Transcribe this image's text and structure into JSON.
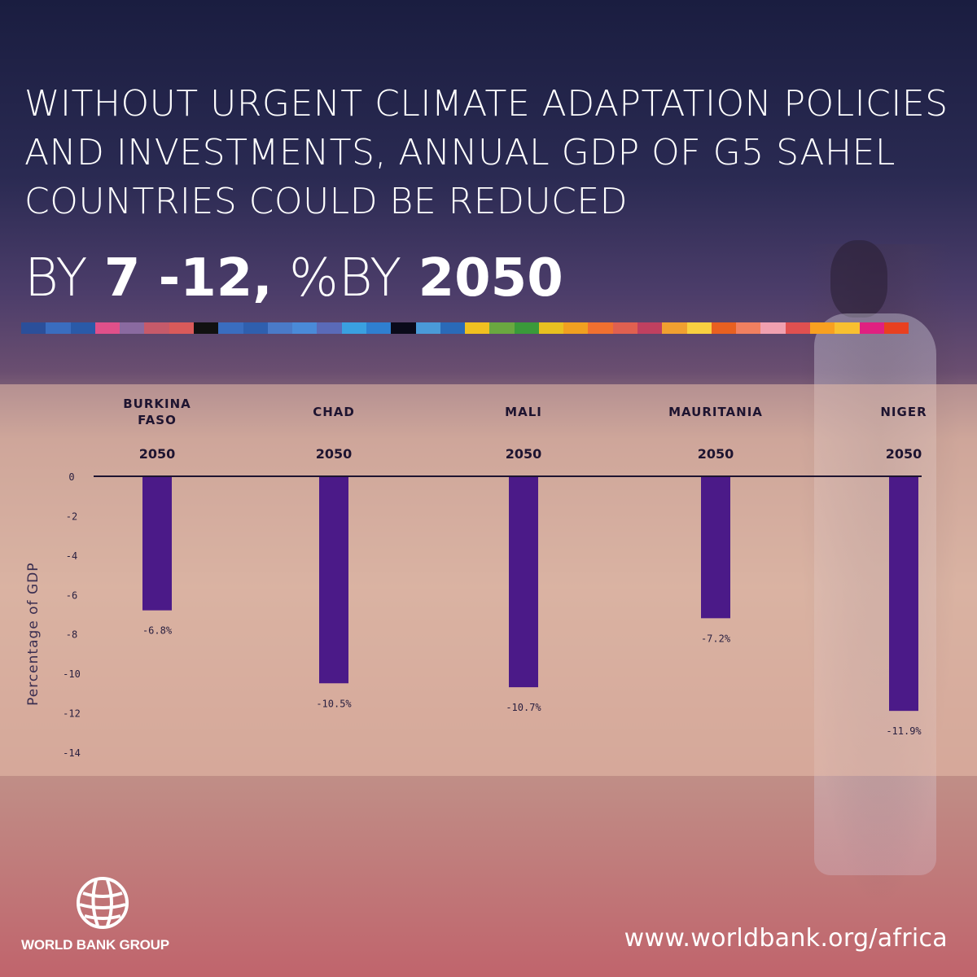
{
  "headline": "WITHOUT URGENT CLIMATE ADAPTATION POLICIES AND INVESTMENTS, ANNUAL GDP OF G5 SAHEL COUNTRIES COULD BE REDUCED",
  "stat": {
    "prefix": "BY",
    "range": "7 -12,",
    "unit": "%",
    "by": "BY",
    "year": "2050"
  },
  "strip_colors": [
    "#2b4f9a",
    "#3a6dbf",
    "#2a5aa8",
    "#e0508a",
    "#8a6aa0",
    "#c65a6a",
    "#d95a5a",
    "#111111",
    "#3a6dbf",
    "#2f5fae",
    "#4a7ac8",
    "#4a8ad8",
    "#5a6ab8",
    "#3aa0e0",
    "#2f7fd0",
    "#0a0a1a",
    "#4a9ad8",
    "#2a6ab8",
    "#f0c020",
    "#6aa840",
    "#3a9a3a",
    "#e8c020",
    "#f0a020",
    "#f07030",
    "#e06050",
    "#c04060",
    "#f0a030",
    "#f8d040",
    "#e86020",
    "#f08060",
    "#f0a0b0",
    "#e05050",
    "#f8a020",
    "#f8c030",
    "#e02080",
    "#e84020"
  ],
  "chart_data": {
    "type": "bar",
    "categories": [
      "BURKINA FASO",
      "CHAD",
      "MALI",
      "MAURITANIA",
      "NIGER"
    ],
    "category_lines": [
      [
        "BURKINA",
        "FASO"
      ],
      [
        "CHAD"
      ],
      [
        "MALI"
      ],
      [
        "MAURITANIA"
      ],
      [
        "NIGER"
      ]
    ],
    "year_labels": [
      "2050",
      "2050",
      "2050",
      "2050",
      "2050"
    ],
    "values": [
      -6.8,
      -10.5,
      -10.7,
      -7.2,
      -11.9
    ],
    "value_labels": [
      "-6.8%",
      "-10.5%",
      "-10.7%",
      "-7.2%",
      "-11.9%"
    ],
    "ylabel": "Percentage of GDP",
    "ylim": [
      -14,
      0
    ],
    "yticks": [
      0,
      -2,
      -4,
      -6,
      -8,
      -10,
      -12,
      -14
    ],
    "bar_color": "#4b1a88"
  },
  "footer": {
    "org_name": "WORLD BANK GROUP",
    "url": "www.worldbank.org/africa"
  }
}
